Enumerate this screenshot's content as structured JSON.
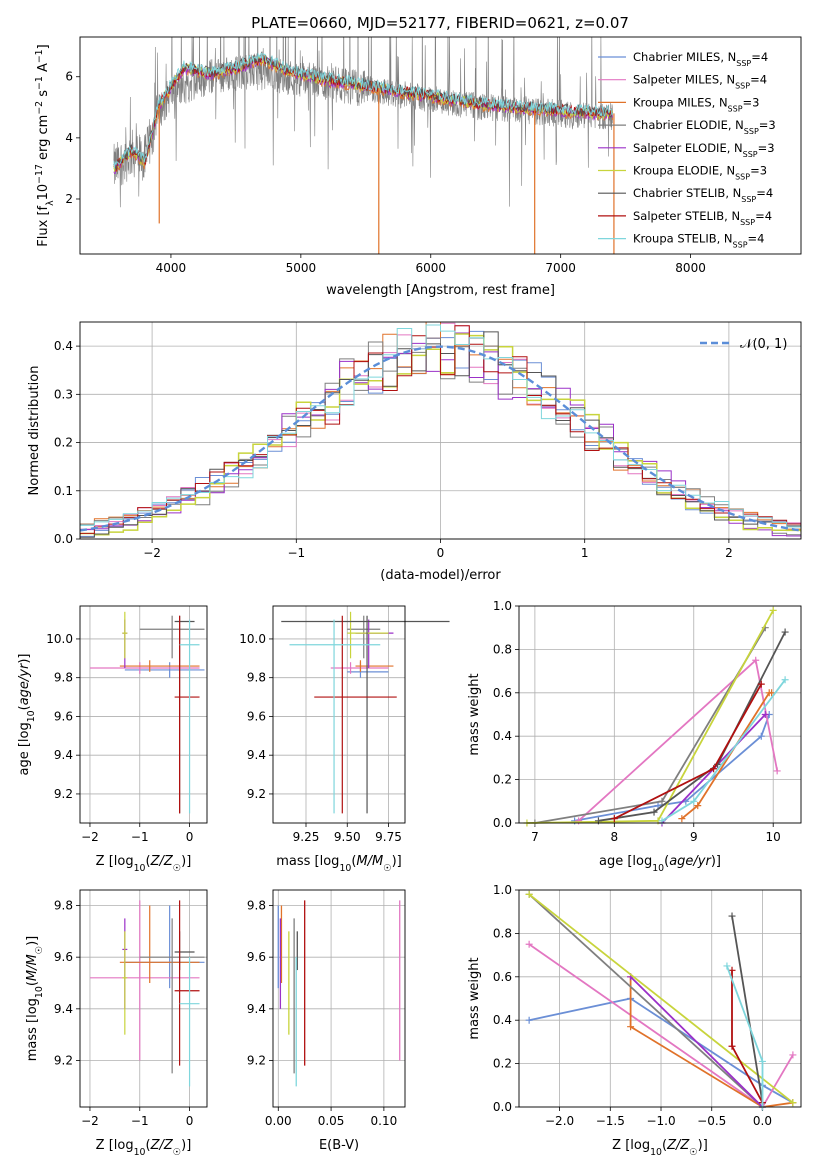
{
  "figure": {
    "title": "PLATE=0660, MJD=52177, FIBERID=0621, z=0.07"
  },
  "colors": {
    "Chabrier MILES": "#6b8fd6",
    "Salpeter MILES": "#e377c2",
    "Kroupa MILES": "#e0722a",
    "Chabrier ELODIE": "#7f7f7f",
    "Salpeter ELODIE": "#9b30c8",
    "Kroupa ELODIE": "#c8d43c",
    "Chabrier STELIB": "#555555",
    "Salpeter STELIB": "#b01010",
    "Kroupa STELIB": "#7fd6dc"
  },
  "chart_data": [
    {
      "id": "spectrum",
      "type": "line",
      "title": "PLATE=0660, MJD=52177, FIBERID=0621, z=0.07",
      "xlabel": "wavelength [Angstrom, rest frame]",
      "ylabel": "Flux [f_λ 10^-17 erg cm^-2 s^-1 A^-1]",
      "xlim": [
        3300,
        8850
      ],
      "ylim": [
        0.2,
        7.3
      ],
      "xticks": [
        4000,
        5000,
        6000,
        7000,
        8000
      ],
      "yticks": [
        2,
        4,
        6
      ],
      "grid": false,
      "legend_position": "right",
      "legend": [
        {
          "name": "Chabrier MILES",
          "nssp": "4"
        },
        {
          "name": "Salpeter MILES",
          "nssp": "4"
        },
        {
          "name": "Kroupa MILES",
          "nssp": "3"
        },
        {
          "name": "Chabrier ELODIE",
          "nssp": "3"
        },
        {
          "name": "Salpeter ELODIE",
          "nssp": "3"
        },
        {
          "name": "Kroupa ELODIE",
          "nssp": "3"
        },
        {
          "name": "Chabrier STELIB",
          "nssp": "4"
        },
        {
          "name": "Salpeter STELIB",
          "nssp": "4"
        },
        {
          "name": "Kroupa STELIB",
          "nssp": "4"
        }
      ],
      "model_continuum": {
        "x": [
          3560,
          3700,
          3800,
          3900,
          4000,
          4100,
          4300,
          4500,
          4700,
          4900,
          5000,
          5200,
          5500,
          5800,
          6100,
          6400,
          6700,
          7000,
          7300,
          7400
        ],
        "y": [
          3.0,
          3.6,
          3.2,
          5.0,
          5.7,
          6.3,
          6.1,
          6.3,
          6.6,
          6.2,
          6.1,
          5.9,
          5.7,
          5.5,
          5.3,
          5.1,
          5.0,
          4.9,
          4.8,
          4.8
        ]
      },
      "observed_continuum": {
        "x": [
          3560,
          3700,
          3800,
          3900,
          4000,
          4300,
          4600,
          4900,
          5200,
          5500,
          5800,
          6100,
          6400,
          6700,
          7000,
          7300,
          7400
        ],
        "y": [
          3.0,
          3.5,
          3.3,
          4.8,
          5.5,
          6.0,
          6.2,
          6.0,
          5.8,
          5.6,
          5.4,
          5.2,
          5.0,
          4.9,
          4.8,
          4.7,
          4.7
        ]
      },
      "model_dips": [
        {
          "x": 3910,
          "y": 1.2
        },
        {
          "x": 5600,
          "y": 0.2
        },
        {
          "x": 6800,
          "y": 0.2
        },
        {
          "x": 7410,
          "y": 0.2
        }
      ]
    },
    {
      "id": "residuals",
      "type": "line",
      "xlabel": "(data-model)/error",
      "ylabel": "Normed distribution",
      "xlim": [
        -2.5,
        2.5
      ],
      "ylim": [
        0,
        0.45
      ],
      "xticks": [
        -2,
        -1,
        0,
        1,
        2
      ],
      "yticks": [
        0.0,
        0.1,
        0.2,
        0.3,
        0.4
      ],
      "grid": true,
      "legend_position": "top-right",
      "gaussian_label": "𝒩(0, 1)",
      "gaussian": {
        "mean": 0,
        "sigma": 1
      }
    },
    {
      "id": "age-vs-z",
      "type": "scatter",
      "xlabel": "Z [log10(Z/Z☉)]",
      "ylabel": "age [log10(age/yr)]",
      "xlim": [
        -2.2,
        0.35
      ],
      "ylim": [
        9.05,
        10.17
      ],
      "xticks": [
        -2,
        -1,
        0
      ],
      "yticks": [
        9.2,
        9.4,
        9.6,
        9.8,
        10.0
      ],
      "grid": true
    },
    {
      "id": "age-vs-mass",
      "type": "scatter",
      "xlabel": "mass [log10(M/M☉)]",
      "ylabel": "",
      "xlim": [
        9.05,
        9.85
      ],
      "ylim": [
        9.05,
        10.17
      ],
      "xticks": [
        9.25,
        9.5,
        9.75
      ],
      "yticks": [
        9.2,
        9.4,
        9.6,
        9.8,
        10.0
      ],
      "grid": true
    },
    {
      "id": "weight-vs-age",
      "type": "line",
      "xlabel": "age [log10(age/yr)]",
      "ylabel": "mass weight",
      "xlim": [
        6.8,
        10.35
      ],
      "ylim": [
        0,
        1
      ],
      "xticks": [
        7,
        8,
        9,
        10
      ],
      "yticks": [
        0.0,
        0.2,
        0.4,
        0.6,
        0.8,
        1.0
      ],
      "grid": true
    },
    {
      "id": "mass-vs-z",
      "type": "scatter",
      "xlabel": "Z [log10(Z/Z☉)]",
      "ylabel": "mass [log10(M/M☉)]",
      "xlim": [
        -2.2,
        0.35
      ],
      "ylim": [
        9.02,
        9.86
      ],
      "xticks": [
        -2,
        -1,
        0
      ],
      "yticks": [
        9.2,
        9.4,
        9.6,
        9.8
      ],
      "grid": true
    },
    {
      "id": "mass-vs-ebv",
      "type": "scatter",
      "xlabel": "E(B-V)",
      "ylabel": "",
      "xlim": [
        -0.005,
        0.12
      ],
      "ylim": [
        9.02,
        9.86
      ],
      "xticks": [
        0.0,
        0.05,
        0.1
      ],
      "yticks": [
        9.2,
        9.4,
        9.6,
        9.8
      ],
      "grid": true
    },
    {
      "id": "weight-vs-z",
      "type": "line",
      "xlabel": "Z [log10(Z/Z☉)]",
      "ylabel": "mass weight",
      "xlim": [
        -2.4,
        0.38
      ],
      "ylim": [
        0,
        1
      ],
      "xticks": [
        -2.0,
        -1.5,
        -1.0,
        -0.5,
        0.0
      ],
      "yticks": [
        0.0,
        0.2,
        0.4,
        0.6,
        0.8,
        1.0
      ],
      "grid": true
    }
  ],
  "models": [
    {
      "name": "Chabrier MILES",
      "z_mean": -0.4,
      "z_lo": -1.3,
      "z_hi": 0.3,
      "age_mean": 9.84,
      "age_lo": 9.8,
      "age_hi": 9.88,
      "mass_mean": 9.58,
      "mass_lo": 9.48,
      "mass_hi": 9.8,
      "mass_age": 9.83,
      "mass_age_lo": 9.5,
      "mass_age_hi": 9.75,
      "ebv": 0.0,
      "weight_age_x": [
        7.5,
        8.55,
        8.9,
        9.85,
        9.95
      ],
      "weight_age_y": [
        0.01,
        0.08,
        0.1,
        0.4,
        0.5
      ],
      "weight_z_x": [
        -2.3,
        -1.3,
        0.0,
        0.3
      ],
      "weight_z_y": [
        0.4,
        0.5,
        0.1,
        0.02
      ]
    },
    {
      "name": "Salpeter MILES",
      "z_mean": -1.0,
      "z_lo": -2.0,
      "z_hi": 0.2,
      "age_mean": 9.85,
      "age_lo": 9.82,
      "age_hi": 9.88,
      "mass_mean": 9.52,
      "mass_lo": 9.2,
      "mass_hi": 9.82,
      "mass_age": 9.85,
      "mass_age_lo": 9.4,
      "mass_age_hi": 9.75,
      "ebv": 0.115,
      "weight_age_x": [
        7.55,
        9.78,
        10.05
      ],
      "weight_age_y": [
        0.01,
        0.75,
        0.24
      ],
      "weight_z_x": [
        -2.3,
        0.0,
        0.3
      ],
      "weight_z_y": [
        0.75,
        0.0,
        0.24
      ]
    },
    {
      "name": "Kroupa MILES",
      "z_mean": -0.8,
      "z_lo": -1.4,
      "z_hi": 0.2,
      "age_mean": 9.86,
      "age_lo": 9.83,
      "age_hi": 9.89,
      "mass_mean": 9.58,
      "mass_lo": 9.5,
      "mass_hi": 9.8,
      "mass_age": 9.86,
      "mass_age_lo": 9.55,
      "mass_age_hi": 9.78,
      "ebv": 0.003,
      "weight_age_x": [
        8.85,
        9.05,
        9.95,
        9.98
      ],
      "weight_age_y": [
        0.02,
        0.08,
        0.6,
        0.6
      ],
      "weight_z_x": [
        -1.3,
        -1.3,
        0.0,
        0.3
      ],
      "weight_z_y": [
        0.6,
        0.37,
        0.0,
        0.02
      ]
    },
    {
      "name": "Chabrier ELODIE",
      "z_mean": -0.35,
      "z_lo": -1.0,
      "z_hi": 0.3,
      "age_mean": 10.05,
      "age_lo": 9.9,
      "age_hi": 10.12,
      "mass_mean": 9.6,
      "mass_lo": 9.15,
      "mass_hi": 9.75,
      "mass_age": 10.05,
      "mass_age_lo": 9.5,
      "mass_age_hi": 9.7,
      "ebv": 0.015,
      "weight_age_x": [
        7.0,
        8.6,
        9.9
      ],
      "weight_age_y": [
        0.0,
        0.1,
        0.9
      ],
      "weight_z_x": [
        -2.3,
        0.0
      ],
      "weight_z_y": [
        0.98,
        0.0
      ]
    },
    {
      "name": "Salpeter ELODIE",
      "z_mean": -1.3,
      "z_lo": -1.35,
      "z_hi": -1.25,
      "age_mean": 10.03,
      "age_lo": 9.85,
      "age_hi": 10.1,
      "mass_mean": 9.63,
      "mass_lo": 9.4,
      "mass_hi": 9.75,
      "mass_age": 10.03,
      "mass_age_lo": 9.55,
      "mass_age_hi": 9.78,
      "ebv": 0.002,
      "weight_age_x": [
        8.6,
        9.9
      ],
      "weight_age_y": [
        0.0,
        0.5
      ],
      "weight_z_x": [
        -1.3,
        0.0
      ],
      "weight_z_y": [
        0.6,
        0.0
      ]
    },
    {
      "name": "Kroupa ELODIE",
      "z_mean": -1.3,
      "z_lo": -1.35,
      "z_hi": -1.25,
      "age_mean": 10.03,
      "age_lo": 9.9,
      "age_hi": 10.14,
      "mass_mean": 9.52,
      "mass_lo": 9.3,
      "mass_hi": 9.7,
      "mass_age": 10.03,
      "mass_age_lo": 9.5,
      "mass_age_hi": 9.75,
      "ebv": 0.01,
      "weight_age_x": [
        6.9,
        8.55,
        10.0
      ],
      "weight_age_y": [
        0.0,
        0.01,
        0.98
      ],
      "weight_z_x": [
        -2.3,
        0.3
      ],
      "weight_z_y": [
        0.98,
        0.02
      ]
    },
    {
      "name": "Chabrier STELIB",
      "z_mean": -0.2,
      "z_lo": -0.3,
      "z_hi": 0.1,
      "age_mean": 10.09,
      "age_lo": 9.1,
      "age_hi": 10.12,
      "mass_mean": 9.62,
      "mass_lo": 9.55,
      "mass_hi": 9.7,
      "mass_age": 10.09,
      "mass_age_lo": 9.1,
      "mass_age_hi": 10.12,
      "ebv": 0.018,
      "weight_age_x": [
        7.8,
        8.5,
        9.3,
        10.15
      ],
      "weight_age_y": [
        0.01,
        0.05,
        0.27,
        0.88
      ],
      "weight_z_x": [
        -0.3,
        0.0
      ],
      "weight_z_y": [
        0.88,
        0.02
      ]
    },
    {
      "name": "Salpeter STELIB",
      "z_mean": -0.2,
      "z_lo": -0.3,
      "z_hi": 0.2,
      "age_mean": 9.7,
      "age_lo": 9.1,
      "age_hi": 10.12,
      "mass_mean": 9.47,
      "mass_lo": 9.18,
      "mass_hi": 9.82,
      "mass_age": 9.7,
      "mass_age_lo": 9.3,
      "mass_age_hi": 9.8,
      "ebv": 0.025,
      "weight_age_x": [
        8.0,
        9.25,
        9.85
      ],
      "weight_age_y": [
        0.02,
        0.25,
        0.64
      ],
      "weight_z_x": [
        -0.3,
        -0.3,
        0.0
      ],
      "weight_z_y": [
        0.63,
        0.28,
        0.02
      ]
    },
    {
      "name": "Kroupa STELIB",
      "z_mean": 0.0,
      "z_lo": -0.2,
      "z_hi": 0.2,
      "age_mean": 9.97,
      "age_lo": 9.1,
      "age_hi": 10.1,
      "mass_mean": 9.42,
      "mass_lo": 9.1,
      "mass_hi": 9.6,
      "mass_age": 9.97,
      "mass_age_lo": 9.15,
      "mass_age_hi": 9.7,
      "ebv": 0.017,
      "weight_age_x": [
        8.6,
        9.0,
        10.15
      ],
      "weight_age_y": [
        0.01,
        0.1,
        0.66
      ],
      "weight_z_x": [
        -0.35,
        0.0,
        0.0
      ],
      "weight_z_y": [
        0.65,
        0.21,
        0.0
      ]
    }
  ]
}
